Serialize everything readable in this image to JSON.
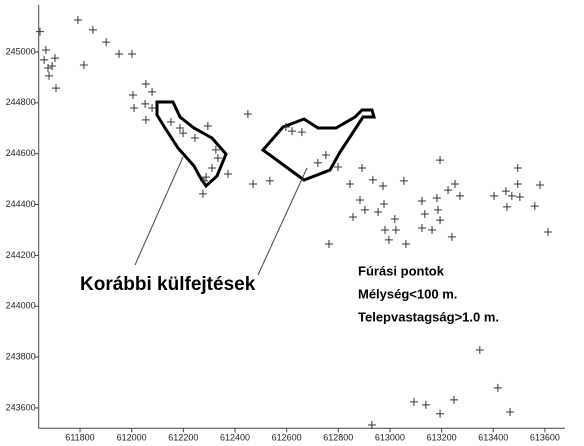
{
  "chart_data": {
    "type": "scatter",
    "color": "#333333",
    "marker": "+",
    "xlim": [
      611640,
      613660
    ],
    "ylim": [
      243520,
      245170
    ],
    "xticks": [
      611800,
      612000,
      612200,
      612400,
      612600,
      612800,
      613000,
      613200,
      613400,
      613600
    ],
    "yticks": [
      243600,
      243800,
      244000,
      244200,
      244400,
      244600,
      244800,
      245000
    ],
    "annotations": [
      "Korábbi külfejtések",
      "Fúrási pontok",
      "Mélység<100 m.",
      "Telepvastagság>1.0 m."
    ],
    "x": [
      611645,
      611668,
      611676,
      611661,
      611692,
      611703,
      611680,
      611707,
      611792,
      611815,
      611850,
      611901,
      611951,
      612001,
      612005,
      612055,
      612052,
      612009,
      612079,
      612055,
      612079,
      612152,
      612187,
      612199,
      612245,
      612295,
      612326,
      612334,
      612288,
      612311,
      612280,
      612276,
      612373,
      612450,
      612470,
      612535,
      612597,
      612621,
      612659,
      612721,
      612752,
      612799,
      612845,
      612892,
      612934,
      612884,
      612857,
      612903,
      612954,
      612973,
      612977,
      612981,
      612996,
      613019,
      613023,
      613054,
      613062,
      612764,
      613124,
      613135,
      613124,
      613163,
      613182,
      613186,
      613194,
      613194,
      613225,
      613252,
      613271,
      613240,
      613403,
      613449,
      613453,
      613472,
      613495,
      613495,
      613503,
      613561,
      613581,
      613612,
      613348,
      613093,
      613139,
      613194,
      613248,
      613418,
      613465,
      612930
    ],
    "values": [
      245080,
      245008,
      244937,
      244969,
      244945,
      244976,
      244906,
      244858,
      245126,
      244949,
      245087,
      245039,
      244992,
      244992,
      244831,
      244874,
      244796,
      244780,
      244843,
      244733,
      244780,
      244725,
      244701,
      244681,
      244662,
      244709,
      244615,
      244583,
      244508,
      244544,
      244493,
      244442,
      244520,
      244756,
      244481,
      244493,
      244705,
      244689,
      244685,
      244564,
      244595,
      244548,
      244481,
      244544,
      244497,
      244418,
      244351,
      244379,
      244371,
      244473,
      244402,
      244300,
      244261,
      244343,
      244300,
      244493,
      244245,
      244245,
      244414,
      244363,
      244308,
      244300,
      244426,
      244379,
      244339,
      244575,
      244457,
      244481,
      244434,
      244273,
      244434,
      244453,
      244391,
      244434,
      244544,
      244481,
      244430,
      244394,
      244477,
      244292,
      243828,
      243624,
      243612,
      243577,
      243632,
      243679,
      243584,
      243533
    ]
  }
}
